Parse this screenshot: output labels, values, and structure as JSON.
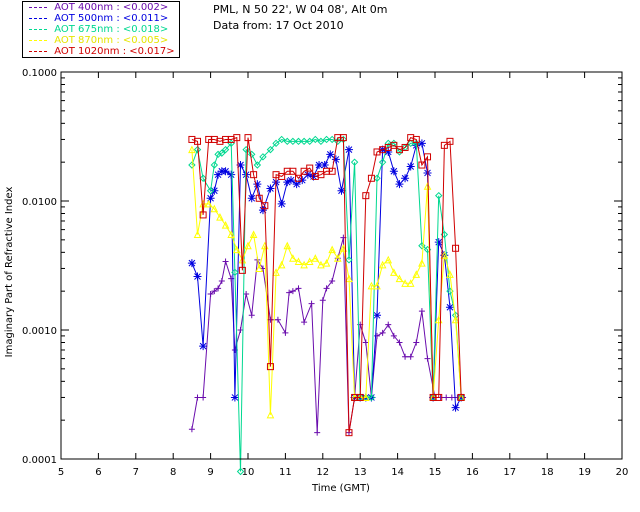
{
  "site": {
    "location": "PML, N 50 22', W 04 08', Alt 0m",
    "date": "Data from: 17 Oct 2010"
  },
  "legend": [
    {
      "label": "AOT  400nm : <0.002>",
      "color": "#6a0dad"
    },
    {
      "label": "AOT  500nm : <0.011>",
      "color": "#0000e0"
    },
    {
      "label": "AOT  675nm : <0.018>",
      "color": "#00d890"
    },
    {
      "label": "AOT  870nm : <0.005>",
      "color": "#ffff00"
    },
    {
      "label": "AOT 1020nm : <0.017>",
      "color": "#d00000"
    }
  ],
  "chart_data": {
    "type": "line",
    "title": "",
    "xlabel": "Time (GMT)",
    "ylabel": "Imaginary Part of Refractive Index",
    "xlim": [
      5,
      20
    ],
    "ylim": [
      0.0001,
      0.1
    ],
    "yscale": "log",
    "xticks": [
      5,
      6,
      7,
      8,
      9,
      10,
      11,
      12,
      13,
      14,
      15,
      16,
      17,
      18,
      19,
      20
    ],
    "yticks": [
      {
        "value": 0.0001,
        "label": "0.0001"
      },
      {
        "value": 0.001,
        "label": "0.0010"
      },
      {
        "value": 0.01,
        "label": "0.0100"
      },
      {
        "value": 0.1,
        "label": "0.1000"
      }
    ],
    "series": [
      {
        "name": "AOT 400nm",
        "color": "#6a0dad",
        "marker": "plus",
        "x": [
          8.5,
          8.65,
          8.8,
          9.0,
          9.1,
          9.2,
          9.3,
          9.4,
          9.55,
          9.65,
          9.8,
          9.95,
          10.1,
          10.25,
          10.4,
          10.6,
          10.8,
          11.0,
          11.1,
          11.2,
          11.35,
          11.5,
          11.7,
          11.85,
          12.0,
          12.1,
          12.25,
          12.4,
          12.55,
          12.7,
          12.85,
          13.0,
          13.15,
          13.3,
          13.45,
          13.6,
          13.75,
          13.9,
          14.05,
          14.2,
          14.35,
          14.5,
          14.65,
          14.8,
          15.0,
          15.15,
          15.3,
          15.45,
          15.6,
          15.75
        ],
        "y": [
          0.00017,
          0.0003,
          0.0003,
          0.0019,
          0.002,
          0.0021,
          0.0024,
          0.0034,
          0.0025,
          0.0007,
          0.001,
          0.0019,
          0.0013,
          0.0035,
          0.003,
          0.0012,
          0.0012,
          0.00095,
          0.00195,
          0.002,
          0.0021,
          0.00115,
          0.0016,
          0.00016,
          0.0017,
          0.0021,
          0.0024,
          0.0036,
          0.0052,
          0.00016,
          0.0003,
          0.0011,
          0.0008,
          0.0003,
          0.0009,
          0.00095,
          0.0011,
          0.0009,
          0.0008,
          0.00062,
          0.00062,
          0.0008,
          0.0014,
          0.0006,
          0.0003,
          0.0003,
          0.0003,
          0.0003,
          0.0003,
          0.0003
        ]
      },
      {
        "name": "AOT 500nm",
        "color": "#0000e0",
        "marker": "star",
        "x": [
          8.5,
          8.65,
          8.8,
          9.0,
          9.1,
          9.2,
          9.3,
          9.4,
          9.55,
          9.65,
          9.8,
          9.95,
          10.1,
          10.25,
          10.4,
          10.6,
          10.75,
          10.9,
          11.05,
          11.15,
          11.3,
          11.45,
          11.6,
          11.75,
          11.9,
          12.05,
          12.2,
          12.35,
          12.5,
          12.7,
          12.85,
          13.0,
          13.15,
          13.3,
          13.45,
          13.6,
          13.75,
          13.9,
          14.05,
          14.2,
          14.35,
          14.5,
          14.65,
          14.8,
          14.95,
          15.1,
          15.25,
          15.4,
          15.55,
          15.7
        ],
        "y": [
          0.0033,
          0.0026,
          0.00075,
          0.0105,
          0.012,
          0.016,
          0.017,
          0.017,
          0.016,
          0.0003,
          0.019,
          0.016,
          0.0105,
          0.0135,
          0.0085,
          0.0125,
          0.014,
          0.0095,
          0.014,
          0.0145,
          0.0135,
          0.0145,
          0.016,
          0.0155,
          0.019,
          0.019,
          0.023,
          0.021,
          0.012,
          0.025,
          0.0003,
          0.0003,
          0.0003,
          0.0003,
          0.0013,
          0.025,
          0.024,
          0.017,
          0.0135,
          0.015,
          0.0185,
          0.027,
          0.028,
          0.0165,
          0.0003,
          0.0048,
          0.0038,
          0.0015,
          0.00025,
          0.0003
        ]
      },
      {
        "name": "AOT 675nm",
        "color": "#00d890",
        "marker": "diamond",
        "x": [
          8.5,
          8.65,
          8.8,
          9.0,
          9.1,
          9.2,
          9.3,
          9.4,
          9.55,
          9.65,
          9.8,
          9.95,
          10.1,
          10.25,
          10.4,
          10.6,
          10.75,
          10.9,
          11.05,
          11.2,
          11.35,
          11.5,
          11.65,
          11.8,
          11.95,
          12.1,
          12.25,
          12.4,
          12.55,
          12.7,
          12.85,
          13.0,
          13.15,
          13.3,
          13.45,
          13.6,
          13.75,
          13.9,
          14.05,
          14.2,
          14.35,
          14.5,
          14.65,
          14.8,
          14.95,
          15.1,
          15.25,
          15.4,
          15.55,
          15.7
        ],
        "y": [
          0.019,
          0.025,
          0.015,
          0.012,
          0.019,
          0.023,
          0.0235,
          0.025,
          0.028,
          0.0028,
          8e-05,
          0.025,
          0.023,
          0.019,
          0.022,
          0.025,
          0.028,
          0.03,
          0.029,
          0.029,
          0.029,
          0.029,
          0.029,
          0.03,
          0.029,
          0.03,
          0.03,
          0.029,
          0.03,
          0.0035,
          0.02,
          0.0003,
          0.0003,
          0.0003,
          0.015,
          0.02,
          0.028,
          0.028,
          0.024,
          0.026,
          0.028,
          0.028,
          0.0045,
          0.0042,
          0.0003,
          0.011,
          0.0055,
          0.002,
          0.0013,
          0.0003
        ]
      },
      {
        "name": "AOT 870nm",
        "color": "#ffff00",
        "marker": "triangle",
        "x": [
          8.5,
          8.65,
          8.8,
          8.95,
          9.1,
          9.25,
          9.4,
          9.55,
          9.7,
          9.85,
          10.0,
          10.15,
          10.3,
          10.45,
          10.6,
          10.75,
          10.9,
          11.05,
          11.2,
          11.35,
          11.5,
          11.65,
          11.8,
          11.95,
          12.1,
          12.25,
          12.4,
          12.55,
          12.7,
          12.85,
          13.0,
          13.15,
          13.3,
          13.45,
          13.6,
          13.75,
          13.9,
          14.05,
          14.2,
          14.35,
          14.5,
          14.65,
          14.8,
          14.95,
          15.1,
          15.25,
          15.4,
          15.55,
          15.7
        ],
        "y": [
          0.025,
          0.0055,
          0.0095,
          0.0095,
          0.0087,
          0.0075,
          0.0065,
          0.0055,
          0.0042,
          0.0035,
          0.0045,
          0.0055,
          0.003,
          0.0045,
          0.00022,
          0.0028,
          0.0032,
          0.0045,
          0.0036,
          0.0034,
          0.0032,
          0.0034,
          0.0036,
          0.0032,
          0.0033,
          0.0042,
          0.0036,
          0.0043,
          0.0025,
          0.0003,
          0.0003,
          0.0003,
          0.0022,
          0.0022,
          0.0032,
          0.0035,
          0.0028,
          0.0025,
          0.0023,
          0.0023,
          0.0027,
          0.0033,
          0.013,
          0.0003,
          0.0012,
          0.0038,
          0.0027,
          0.0012,
          0.0003
        ]
      },
      {
        "name": "AOT 1020nm",
        "color": "#d00000",
        "marker": "square",
        "x": [
          8.5,
          8.65,
          8.8,
          8.95,
          9.1,
          9.25,
          9.4,
          9.55,
          9.7,
          9.85,
          10.0,
          10.15,
          10.3,
          10.45,
          10.6,
          10.75,
          10.9,
          11.05,
          11.2,
          11.35,
          11.5,
          11.65,
          11.8,
          11.95,
          12.1,
          12.25,
          12.4,
          12.55,
          12.7,
          12.85,
          13.0,
          13.15,
          13.3,
          13.45,
          13.6,
          13.75,
          13.9,
          14.05,
          14.2,
          14.35,
          14.5,
          14.65,
          14.8,
          14.95,
          15.1,
          15.25,
          15.4,
          15.55,
          15.7
        ],
        "y": [
          0.03,
          0.029,
          0.0078,
          0.03,
          0.03,
          0.029,
          0.03,
          0.03,
          0.031,
          0.0029,
          0.031,
          0.016,
          0.0105,
          0.0092,
          0.00052,
          0.016,
          0.0155,
          0.017,
          0.017,
          0.015,
          0.017,
          0.018,
          0.0155,
          0.016,
          0.017,
          0.017,
          0.031,
          0.031,
          0.00016,
          0.0003,
          0.0003,
          0.011,
          0.015,
          0.024,
          0.025,
          0.026,
          0.027,
          0.025,
          0.026,
          0.031,
          0.03,
          0.019,
          0.022,
          0.0003,
          0.0003,
          0.027,
          0.029,
          0.0043,
          0.0003
        ]
      }
    ]
  }
}
